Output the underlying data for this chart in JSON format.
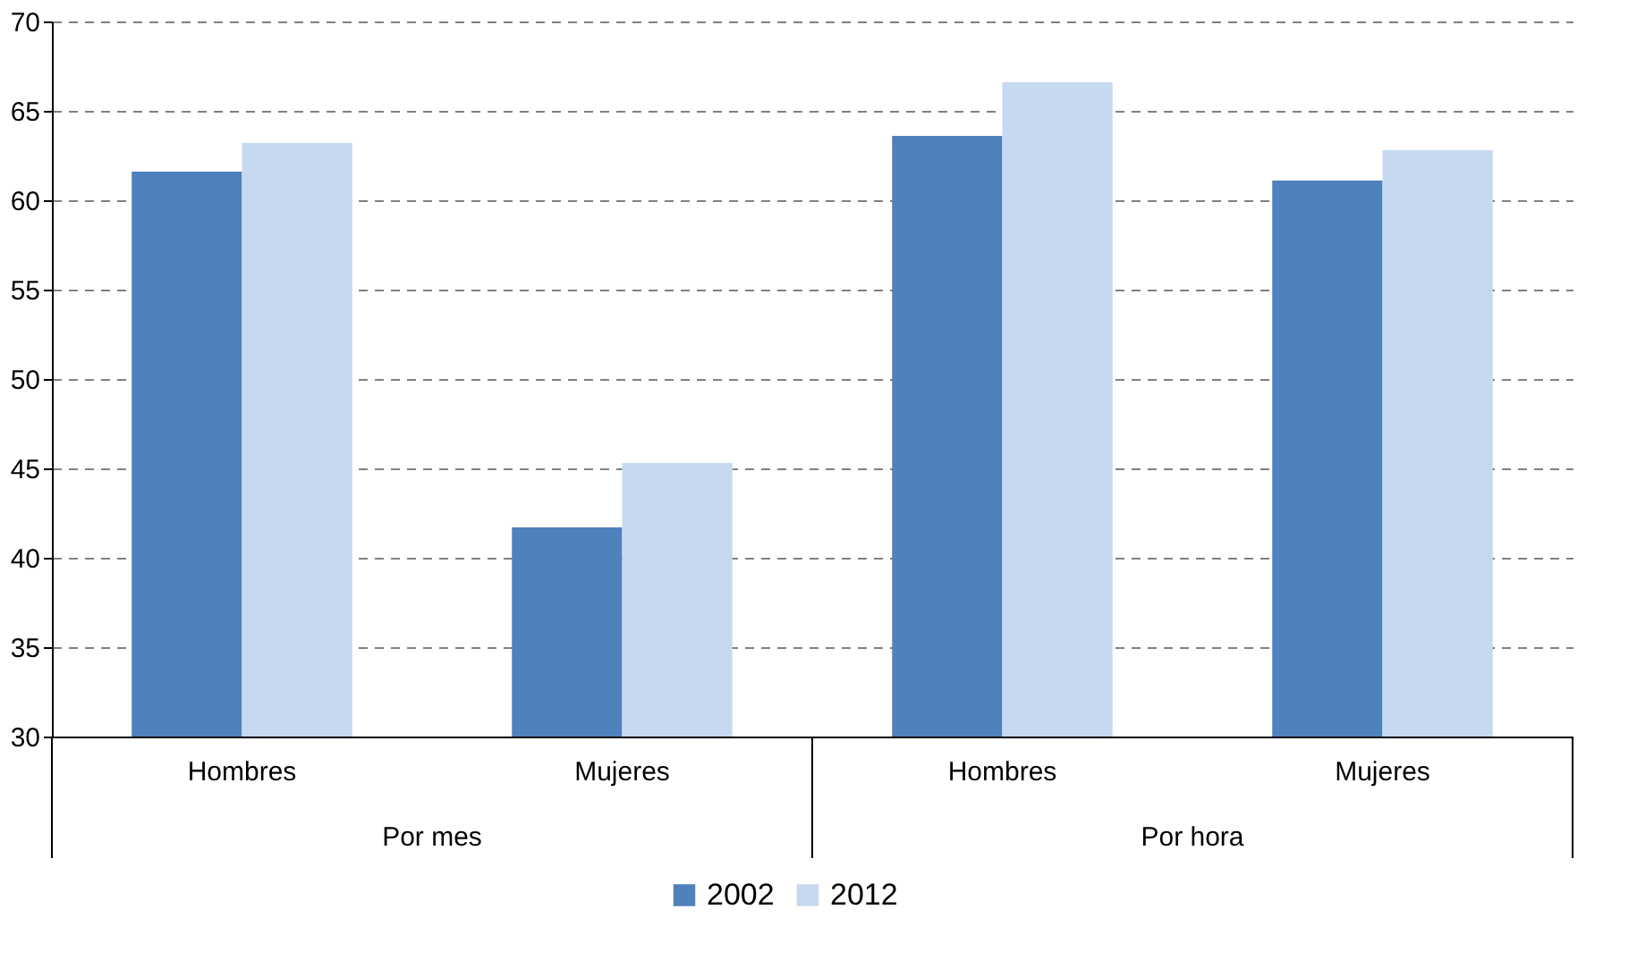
{
  "chart_data": {
    "type": "bar",
    "categories": [
      "Hombres",
      "Mujeres",
      "Hombres",
      "Mujeres"
    ],
    "annotations": [
      "Por mes",
      "Por hora"
    ],
    "series": [
      {
        "name": "2002",
        "color": "#4f81bd",
        "values": [
          61.6,
          41.7,
          63.6,
          61.1
        ]
      },
      {
        "name": "2012",
        "color": "#c6d9f1",
        "values": [
          63.2,
          45.3,
          66.6,
          62.8
        ]
      }
    ],
    "ylim": [
      30,
      70
    ],
    "yticks": [
      30,
      35,
      40,
      45,
      50,
      55,
      60,
      65,
      70
    ],
    "grid": "y",
    "legend": "bottom"
  }
}
